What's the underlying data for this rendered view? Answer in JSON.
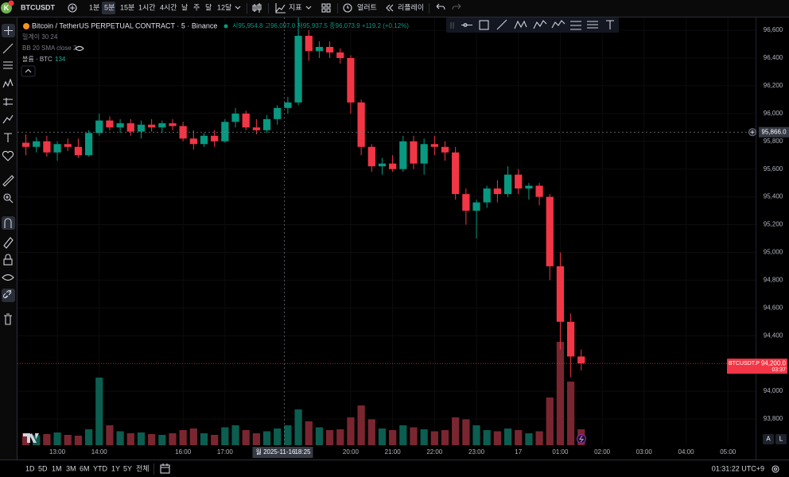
{
  "top_bar": {
    "avatar": "K",
    "symbol": "BTCUSDT",
    "intervals": [
      "1분",
      "5분",
      "15분",
      "1시간",
      "4시간",
      "날",
      "주",
      "달",
      "12달"
    ],
    "indicators": "지표",
    "alerts": "얼러트",
    "replay": "리플레이"
  },
  "legend": {
    "title": "Bitcoin / TetherUS PERPETUAL CONTRACT · 5 · Binance",
    "ohlc": "시95,954.8 고96,097.0 저95,937.5 종96,073.9 +119.2 (+0.12%)",
    "indicator_1": "밀계이 30 24",
    "indicator_2": "BB 20 SMA close 2",
    "volume_name": "볼륨 · BTC",
    "volume_value": "134"
  },
  "chart_data": {
    "type": "candlestick",
    "up_color": "#089981",
    "down_color": "#f23645",
    "volume_up_color": "#0b5e50",
    "volume_down_color": "#7a2630",
    "xlim": [
      12.05,
      29.66
    ],
    "xticks": [
      {
        "value": 13,
        "label": "13:00"
      },
      {
        "value": 14,
        "label": "14:00"
      },
      {
        "value": 16,
        "label": "16:00"
      },
      {
        "value": 17,
        "label": "17:00"
      },
      {
        "value": 20,
        "label": "20:00"
      },
      {
        "value": 21,
        "label": "21:00"
      },
      {
        "value": 22,
        "label": "22:00"
      },
      {
        "value": 23,
        "label": "23:00"
      },
      {
        "value": 24,
        "label": "17"
      },
      {
        "value": 25,
        "label": "01:00"
      },
      {
        "value": 26,
        "label": "02:00"
      },
      {
        "value": 27,
        "label": "03:00"
      },
      {
        "value": 28,
        "label": "04:00"
      },
      {
        "value": 29,
        "label": "05:00"
      }
    ],
    "ylim": [
      93611,
      96692
    ],
    "yticks": [
      {
        "value": 96600,
        "label": "96,600"
      },
      {
        "value": 96400,
        "label": "96,400"
      },
      {
        "value": 96200,
        "label": "96,200"
      },
      {
        "value": 96000,
        "label": "96,000"
      },
      {
        "value": 95800,
        "label": "95,800"
      },
      {
        "value": 95600,
        "label": "95,600"
      },
      {
        "value": 95400,
        "label": "95,400"
      },
      {
        "value": 95200,
        "label": "95,200"
      },
      {
        "value": 95000,
        "label": "95,000"
      },
      {
        "value": 94800,
        "label": "94,800"
      },
      {
        "value": 94600,
        "label": "94,600"
      },
      {
        "value": 94400,
        "label": "94,400"
      },
      {
        "value": 94000,
        "label": "94,000"
      },
      {
        "value": 93800,
        "label": "93,800"
      }
    ],
    "x": [
      12.25,
      12.5,
      12.75,
      13,
      13.25,
      13.5,
      13.75,
      14,
      14.25,
      14.5,
      14.75,
      15,
      15.25,
      15.5,
      15.75,
      16,
      16.25,
      16.5,
      16.75,
      17,
      17.25,
      17.5,
      17.75,
      18,
      18.25,
      18.5,
      18.75,
      19,
      19.25,
      19.5,
      19.75,
      20,
      20.25,
      20.5,
      20.75,
      21,
      21.25,
      21.5,
      21.75,
      22,
      22.25,
      22.5,
      22.75,
      23,
      23.25,
      23.5,
      23.75,
      24,
      24.25,
      24.5,
      24.75,
      25,
      25.25,
      25.5
    ],
    "open": [
      95790,
      95760,
      95800,
      95720,
      95780,
      95760,
      95700,
      95860,
      95950,
      95900,
      95930,
      95870,
      95920,
      95900,
      95930,
      95910,
      95820,
      95780,
      95840,
      95800,
      95940,
      96000,
      95900,
      95880,
      95960,
      96040,
      96080,
      96560,
      96450,
      96480,
      96440,
      96400,
      96080,
      95760,
      95620,
      95640,
      95600,
      95800,
      95640,
      95780,
      95760,
      95720,
      95420,
      95300,
      95360,
      95460,
      95420,
      95560,
      95460,
      95480,
      95400,
      94900,
      94500,
      94250
    ],
    "high": [
      95850,
      95830,
      95840,
      95800,
      95820,
      95820,
      95880,
      96000,
      95980,
      95960,
      95960,
      95950,
      95960,
      95950,
      95960,
      95940,
      95880,
      95860,
      95880,
      95960,
      96040,
      96020,
      95960,
      95990,
      96060,
      96120,
      96690,
      96600,
      96520,
      96520,
      96470,
      96420,
      96100,
      95780,
      95680,
      95700,
      95840,
      95840,
      95820,
      95840,
      95800,
      95760,
      95460,
      95380,
      95480,
      95520,
      95620,
      95600,
      95500,
      95500,
      95420,
      95000,
      94560,
      94300
    ],
    "low": [
      95700,
      95720,
      95690,
      95660,
      95730,
      95680,
      95690,
      95840,
      95880,
      95860,
      95840,
      95820,
      95870,
      95860,
      95880,
      95800,
      95740,
      95760,
      95760,
      95790,
      95900,
      95880,
      95850,
      95860,
      95920,
      96000,
      96060,
      96380,
      96400,
      96400,
      96360,
      96000,
      95700,
      95580,
      95560,
      95580,
      95580,
      95600,
      95560,
      95700,
      95660,
      95380,
      95200,
      95100,
      95320,
      95360,
      95400,
      95420,
      95380,
      95340,
      94800,
      94300,
      94100,
      94150
    ],
    "close": [
      95760,
      95800,
      95720,
      95780,
      95760,
      95700,
      95860,
      95950,
      95900,
      95930,
      95870,
      95920,
      95900,
      95930,
      95910,
      95820,
      95780,
      95840,
      95800,
      95940,
      96000,
      95900,
      95880,
      95960,
      96040,
      96080,
      96560,
      96450,
      96480,
      96440,
      96400,
      96080,
      95760,
      95620,
      95640,
      95600,
      95800,
      95640,
      95780,
      95760,
      95720,
      95420,
      95300,
      95360,
      95460,
      95420,
      95560,
      95460,
      95480,
      95400,
      94900,
      94500,
      94250,
      94200
    ],
    "volume": [
      300,
      250,
      280,
      320,
      260,
      240,
      400,
      1700,
      500,
      350,
      300,
      320,
      280,
      260,
      300,
      380,
      420,
      300,
      260,
      450,
      500,
      380,
      300,
      350,
      420,
      500,
      900,
      600,
      450,
      380,
      400,
      700,
      1000,
      650,
      420,
      380,
      500,
      450,
      400,
      350,
      380,
      700,
      650,
      500,
      380,
      350,
      420,
      380,
      300,
      350,
      1200,
      2600,
      1600,
      400
    ],
    "volume_ylim": [
      0,
      4000
    ],
    "crosshair": {
      "x": 18.4167,
      "price": 95866,
      "price_label": "95,866.0",
      "time_label": "월 2025-11-16",
      "time": "18:25"
    },
    "last_price": {
      "symbol": "BTCUSDT.P",
      "label": "94,200.0",
      "countdown": "03:37"
    }
  },
  "bottom_bar": {
    "ranges": [
      "1D",
      "5D",
      "1M",
      "3M",
      "6M",
      "YTD",
      "1Y",
      "5Y",
      "전체"
    ],
    "clock": "01:31:22 UTC+9",
    "scale_auto": "A",
    "scale_log": "L"
  }
}
